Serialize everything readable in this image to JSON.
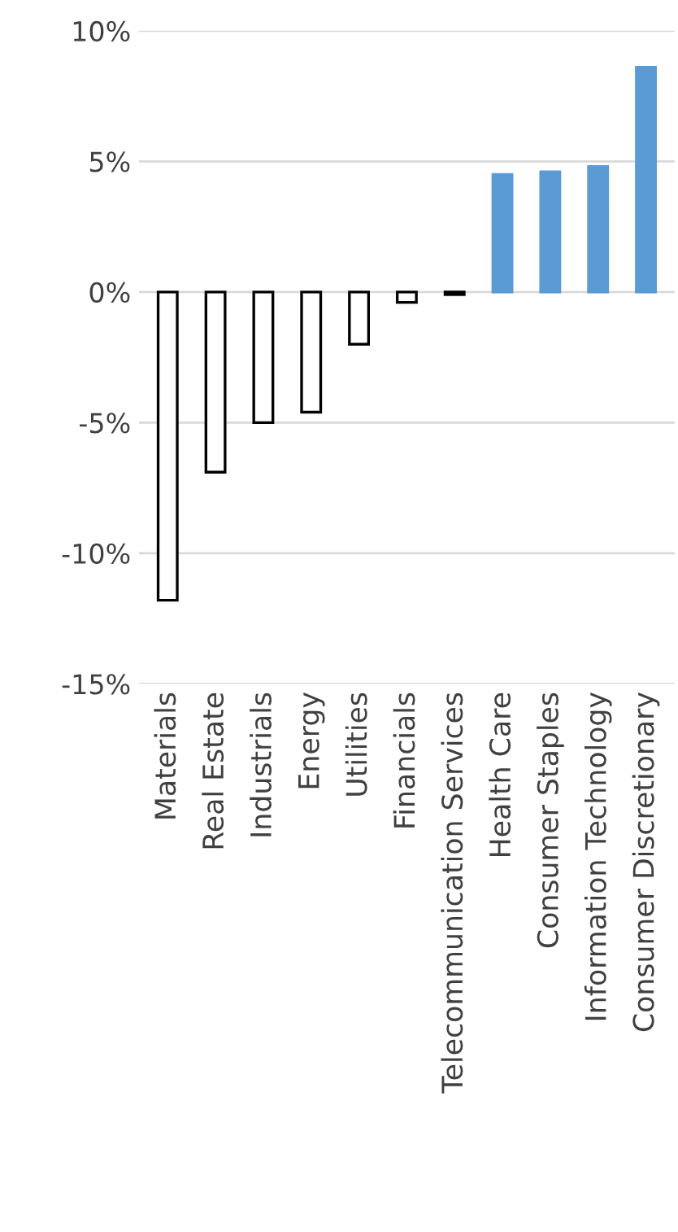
{
  "chart_data": {
    "type": "bar",
    "categories": [
      "Materials",
      "Real Estate",
      "Industrials",
      "Energy",
      "Utilities",
      "Financials",
      "Telecommunication Services",
      "Health Care",
      "Consumer Staples",
      "Information Technology",
      "Consumer Discretionary"
    ],
    "values": [
      -11.8,
      -6.9,
      -5.0,
      -4.6,
      -2.0,
      -0.4,
      -0.1,
      4.5,
      4.6,
      4.8,
      8.6
    ],
    "colors": [
      "#ffffff",
      "#ffffff",
      "#ffffff",
      "#ffffff",
      "#ffffff",
      "#ffffff",
      "#ffffff",
      "#5b9bd5",
      "#5b9bd5",
      "#5b9bd5",
      "#5b9bd5"
    ],
    "ylim": [
      -15,
      10
    ],
    "yticks": [
      {
        "value": -15,
        "label": "-15%"
      },
      {
        "value": -10,
        "label": "-10%"
      },
      {
        "value": -5,
        "label": "-5%"
      },
      {
        "value": 0,
        "label": "0%"
      },
      {
        "value": 5,
        "label": "5%"
      },
      {
        "value": 10,
        "label": "10%"
      }
    ],
    "grid": "y",
    "legend": false
  }
}
